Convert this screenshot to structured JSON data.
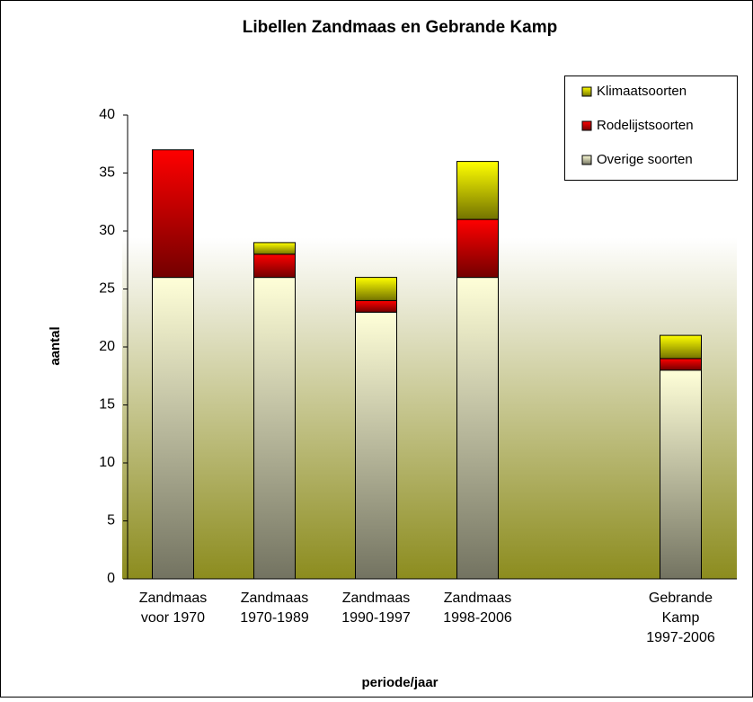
{
  "chart_data": {
    "type": "stacked-bar",
    "title": "Libellen Zandmaas en Gebrande Kamp",
    "x_label": "periode/jaar",
    "y_label": "aantal",
    "categories": [
      [
        "Zandmaas",
        "voor 1970"
      ],
      [
        "Zandmaas",
        "1970-1989"
      ],
      [
        "Zandmaas",
        "1990-1997"
      ],
      [
        "Zandmaas",
        "1998-2006"
      ],
      null,
      [
        "Gebrande",
        "Kamp",
        "1997-2006"
      ]
    ],
    "series": [
      {
        "name": "Overige soorten",
        "color": "#ffffd8",
        "values": [
          26,
          26,
          23,
          26,
          null,
          18
        ]
      },
      {
        "name": "Rodelijstsoorten",
        "color": "#ff0000",
        "values": [
          11,
          2,
          1,
          5,
          null,
          1
        ]
      },
      {
        "name": "Klimaatsoorten",
        "color": "#ffff00",
        "values": [
          0,
          1,
          2,
          5,
          null,
          2
        ]
      }
    ],
    "ylim": [
      0,
      40
    ],
    "yticks": [
      0,
      5,
      10,
      15,
      20,
      25,
      30,
      35,
      40
    ],
    "legend": "top-right"
  }
}
